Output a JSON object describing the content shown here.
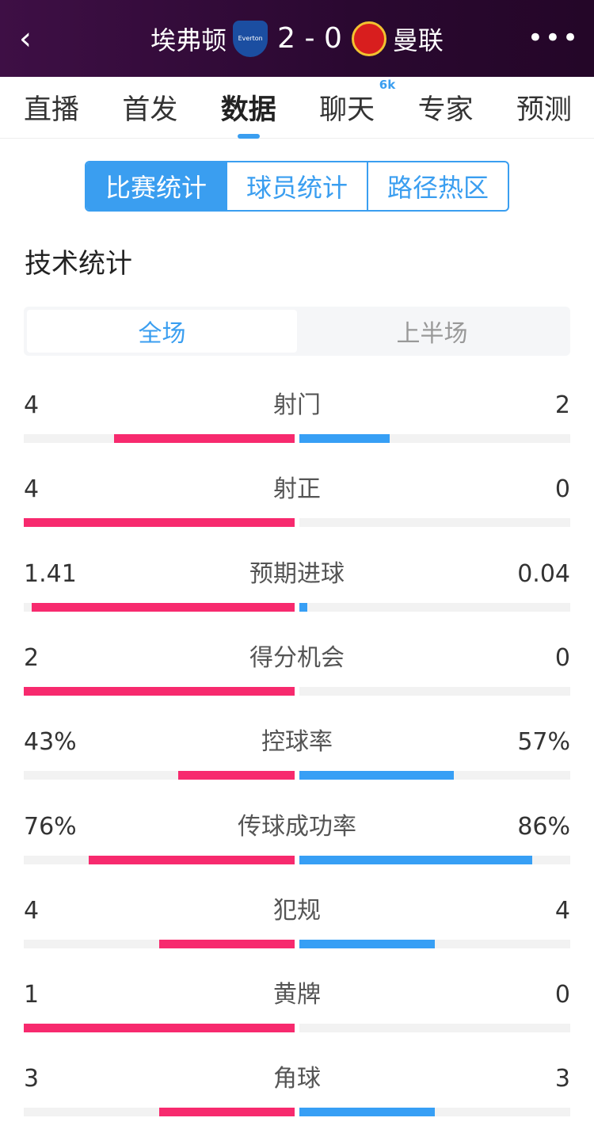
{
  "header": {
    "home": "埃弗顿",
    "away": "曼联",
    "score_home": "2",
    "score_sep": "-",
    "score_away": "0",
    "home_crest_text": "Everton",
    "away_crest_text": "MUFC"
  },
  "tabs": [
    {
      "label": "直播"
    },
    {
      "label": "首发"
    },
    {
      "label": "数据",
      "active": true
    },
    {
      "label": "聊天",
      "badge": "6k"
    },
    {
      "label": "专家"
    },
    {
      "label": "预测"
    }
  ],
  "segments": [
    "比赛统计",
    "球员统计",
    "路径热区"
  ],
  "section_title": "技术统计",
  "periods": [
    "全场",
    "上半场"
  ],
  "colors": {
    "home": "#f72a6e",
    "away": "#379ff5",
    "accent": "#3a9ef0"
  },
  "stats": [
    {
      "name": "射门",
      "home": "4",
      "away": "2",
      "home_fill": 0.667,
      "away_fill": 0.333
    },
    {
      "name": "射正",
      "home": "4",
      "away": "0",
      "home_fill": 1,
      "away_fill": 0
    },
    {
      "name": "预期进球",
      "home": "1.41",
      "away": "0.04",
      "home_fill": 0.97,
      "away_fill": 0.03
    },
    {
      "name": "得分机会",
      "home": "2",
      "away": "0",
      "home_fill": 1,
      "away_fill": 0
    },
    {
      "name": "控球率",
      "home": "43%",
      "away": "57%",
      "home_fill": 0.43,
      "away_fill": 0.57
    },
    {
      "name": "传球成功率",
      "home": "76%",
      "away": "86%",
      "home_fill": 0.76,
      "away_fill": 0.86
    },
    {
      "name": "犯规",
      "home": "4",
      "away": "4",
      "home_fill": 0.5,
      "away_fill": 0.5
    },
    {
      "name": "黄牌",
      "home": "1",
      "away": "0",
      "home_fill": 1,
      "away_fill": 0
    },
    {
      "name": "角球",
      "home": "3",
      "away": "3",
      "home_fill": 0.5,
      "away_fill": 0.5
    }
  ]
}
